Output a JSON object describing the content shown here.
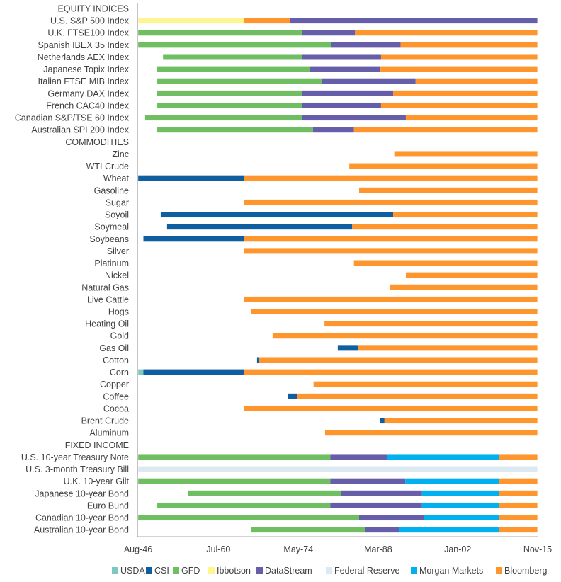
{
  "chart_data": {
    "type": "bar",
    "orientation": "horizontal-timeline",
    "title": "",
    "xlabel": "",
    "ylabel": "",
    "xlim": [
      1946.58,
      2015.85
    ],
    "x_ticks": [
      {
        "label": "Aug-46",
        "value": 1946.58
      },
      {
        "label": "Jul-60",
        "value": 1960.5
      },
      {
        "label": "May-74",
        "value": 1974.37
      },
      {
        "label": "Mar-88",
        "value": 1988.2
      },
      {
        "label": "Jan-02",
        "value": 2002.0
      },
      {
        "label": "Nov-15",
        "value": 2015.85
      }
    ],
    "legend_position": "bottom",
    "sources": [
      {
        "name": "USDA",
        "color": "#7fc8c0"
      },
      {
        "name": "CSI",
        "color": "#0f5fa0"
      },
      {
        "name": "GFD",
        "color": "#6fbf62"
      },
      {
        "name": "Ibbotson",
        "color": "#fff68f"
      },
      {
        "name": "DataStream",
        "color": "#665ea8"
      },
      {
        "name": "Federal Reserve",
        "color": "#dce9f3"
      },
      {
        "name": "Morgan Markets",
        "color": "#00b0ef"
      },
      {
        "name": "Bloomberg",
        "color": "#fe952d"
      }
    ],
    "rows": [
      {
        "label": "EQUITY INDICES",
        "header": true,
        "segments": []
      },
      {
        "label": "U.S. S&P 500 Index",
        "segments": [
          [
            "Ibbotson",
            1946.6,
            1964.9
          ],
          [
            "Bloomberg",
            1964.9,
            1972.9
          ],
          [
            "DataStream",
            1972.9,
            2015.8
          ]
        ]
      },
      {
        "label": "U.K. FTSE100 Index",
        "segments": [
          [
            "GFD",
            1946.6,
            1975.0
          ],
          [
            "DataStream",
            1975.0,
            1984.2
          ],
          [
            "Bloomberg",
            1984.2,
            2015.8
          ]
        ]
      },
      {
        "label": "Spanish IBEX 35 Index",
        "segments": [
          [
            "GFD",
            1946.6,
            1980.0
          ],
          [
            "DataStream",
            1980.0,
            1992.1
          ],
          [
            "Bloomberg",
            1992.1,
            2015.8
          ]
        ]
      },
      {
        "label": "Netherlands AEX Index",
        "segments": [
          [
            "GFD",
            1950.9,
            1975.0
          ],
          [
            "DataStream",
            1975.0,
            1988.7
          ],
          [
            "Bloomberg",
            1988.7,
            2015.8
          ]
        ]
      },
      {
        "label": "Japanese Topix Index",
        "segments": [
          [
            "GFD",
            1949.9,
            1976.4
          ],
          [
            "DataStream",
            1976.4,
            1988.6
          ],
          [
            "Bloomberg",
            1988.6,
            2015.8
          ]
        ]
      },
      {
        "label": "Italian FTSE MIB Index",
        "segments": [
          [
            "GFD",
            1949.9,
            1978.4
          ],
          [
            "DataStream",
            1978.4,
            1994.7
          ],
          [
            "Bloomberg",
            1994.7,
            2015.8
          ]
        ]
      },
      {
        "label": "Germany DAX Index",
        "segments": [
          [
            "GFD",
            1949.9,
            1975.0
          ],
          [
            "DataStream",
            1975.0,
            1990.8
          ],
          [
            "Bloomberg",
            1990.8,
            2015.8
          ]
        ]
      },
      {
        "label": "French CAC40 Index",
        "segments": [
          [
            "GFD",
            1949.9,
            1975.0
          ],
          [
            "DataStream",
            1975.0,
            1988.7
          ],
          [
            "Bloomberg",
            1988.7,
            2015.8
          ]
        ]
      },
      {
        "label": "Canadian S&P/TSE 60 Index",
        "segments": [
          [
            "GFD",
            1947.8,
            1975.0
          ],
          [
            "DataStream",
            1975.0,
            1993.0
          ],
          [
            "Bloomberg",
            1993.0,
            2015.8
          ]
        ]
      },
      {
        "label": "Australian SPI 200 Index",
        "segments": [
          [
            "GFD",
            1949.9,
            1976.9
          ],
          [
            "DataStream",
            1976.9,
            1984.0
          ],
          [
            "Bloomberg",
            1984.0,
            2015.8
          ]
        ]
      },
      {
        "label": "COMMODITIES",
        "header": true,
        "segments": []
      },
      {
        "label": "Zinc",
        "segments": [
          [
            "Bloomberg",
            1991.0,
            2015.8
          ]
        ]
      },
      {
        "label": "WTI Crude",
        "segments": [
          [
            "Bloomberg",
            1983.2,
            2015.8
          ]
        ]
      },
      {
        "label": "Wheat",
        "segments": [
          [
            "CSI",
            1946.6,
            1964.9
          ],
          [
            "Bloomberg",
            1964.9,
            2015.8
          ]
        ]
      },
      {
        "label": "Gasoline",
        "segments": [
          [
            "Bloomberg",
            1984.9,
            2015.8
          ]
        ]
      },
      {
        "label": "Sugar",
        "segments": [
          [
            "Bloomberg",
            1964.9,
            2015.8
          ]
        ]
      },
      {
        "label": "Soyoil",
        "segments": [
          [
            "CSI",
            1950.5,
            1990.8
          ],
          [
            "Bloomberg",
            1990.8,
            2015.8
          ]
        ]
      },
      {
        "label": "Soymeal",
        "segments": [
          [
            "CSI",
            1951.6,
            1983.7
          ],
          [
            "Bloomberg",
            1983.7,
            2015.8
          ]
        ]
      },
      {
        "label": "Soybeans",
        "segments": [
          [
            "CSI",
            1947.5,
            1964.9
          ],
          [
            "Bloomberg",
            1964.9,
            2015.8
          ]
        ]
      },
      {
        "label": "Silver",
        "segments": [
          [
            "Bloomberg",
            1964.9,
            2015.8
          ]
        ]
      },
      {
        "label": "Platinum",
        "segments": [
          [
            "Bloomberg",
            1984.0,
            2015.8
          ]
        ]
      },
      {
        "label": "Nickel",
        "segments": [
          [
            "Bloomberg",
            1993.0,
            2015.8
          ]
        ]
      },
      {
        "label": "Natural Gas",
        "segments": [
          [
            "Bloomberg",
            1990.3,
            2015.8
          ]
        ]
      },
      {
        "label": "Live Cattle",
        "segments": [
          [
            "Bloomberg",
            1964.9,
            2015.8
          ]
        ]
      },
      {
        "label": "Hogs",
        "segments": [
          [
            "Bloomberg",
            1966.1,
            2015.8
          ]
        ]
      },
      {
        "label": "Heating Oil",
        "segments": [
          [
            "Bloomberg",
            1978.9,
            2015.8
          ]
        ]
      },
      {
        "label": "Gold",
        "segments": [
          [
            "Bloomberg",
            1969.9,
            2015.8
          ]
        ]
      },
      {
        "label": "Gas Oil",
        "segments": [
          [
            "CSI",
            1981.2,
            1984.8
          ],
          [
            "Bloomberg",
            1984.8,
            2015.8
          ]
        ]
      },
      {
        "label": "Cotton",
        "segments": [
          [
            "CSI",
            1967.2,
            1967.6
          ],
          [
            "Bloomberg",
            1967.6,
            2015.8
          ]
        ]
      },
      {
        "label": "Corn",
        "segments": [
          [
            "USDA",
            1946.6,
            1947.5
          ],
          [
            "CSI",
            1947.5,
            1964.9
          ],
          [
            "Bloomberg",
            1964.9,
            2015.8
          ]
        ]
      },
      {
        "label": "Copper",
        "segments": [
          [
            "Bloomberg",
            1977.0,
            2015.8
          ]
        ]
      },
      {
        "label": "Coffee",
        "segments": [
          [
            "CSI",
            1972.6,
            1974.2
          ],
          [
            "Bloomberg",
            1974.2,
            2015.8
          ]
        ]
      },
      {
        "label": "Cocoa",
        "segments": [
          [
            "Bloomberg",
            1964.9,
            2015.8
          ]
        ]
      },
      {
        "label": "Brent Crude",
        "segments": [
          [
            "CSI",
            1988.5,
            1989.3
          ],
          [
            "Bloomberg",
            1989.3,
            2015.8
          ]
        ]
      },
      {
        "label": "Aluminum",
        "segments": [
          [
            "Bloomberg",
            1979.0,
            2015.8
          ]
        ]
      },
      {
        "label": "FIXED INCOME",
        "header": true,
        "segments": []
      },
      {
        "label": "U.S. 10-year Treasury Note",
        "segments": [
          [
            "GFD",
            1946.6,
            1979.9
          ],
          [
            "DataStream",
            1979.9,
            1989.8
          ],
          [
            "Morgan Markets",
            1989.8,
            2009.2
          ],
          [
            "Bloomberg",
            2009.2,
            2015.8
          ]
        ]
      },
      {
        "label": "U.S. 3-month Treasury Bill",
        "segments": [
          [
            "Federal Reserve",
            1946.6,
            2015.8
          ]
        ]
      },
      {
        "label": "U.K. 10-year Gilt",
        "segments": [
          [
            "GFD",
            1946.6,
            1979.9
          ],
          [
            "DataStream",
            1979.9,
            1992.9
          ],
          [
            "Morgan Markets",
            1992.9,
            2009.2
          ],
          [
            "Bloomberg",
            2009.2,
            2015.8
          ]
        ]
      },
      {
        "label": "Japanese 10-year Bond",
        "segments": [
          [
            "GFD",
            1955.3,
            1981.8
          ],
          [
            "DataStream",
            1981.8,
            1995.8
          ],
          [
            "Morgan Markets",
            1995.8,
            2009.2
          ],
          [
            "Bloomberg",
            2009.2,
            2015.8
          ]
        ]
      },
      {
        "label": "Euro Bund",
        "segments": [
          [
            "GFD",
            1949.9,
            1979.9
          ],
          [
            "DataStream",
            1979.9,
            1995.8
          ],
          [
            "Morgan Markets",
            1995.8,
            2009.2
          ],
          [
            "Bloomberg",
            2009.2,
            2015.8
          ]
        ]
      },
      {
        "label": "Canadian 10-year Bond",
        "segments": [
          [
            "GFD",
            1946.6,
            1984.9
          ],
          [
            "DataStream",
            1984.9,
            1996.2
          ],
          [
            "Morgan Markets",
            1996.2,
            2009.2
          ],
          [
            "Bloomberg",
            2009.2,
            2015.8
          ]
        ]
      },
      {
        "label": "Australian 10-year Bond",
        "segments": [
          [
            "GFD",
            1966.2,
            1985.9
          ],
          [
            "DataStream",
            1985.9,
            1991.9
          ],
          [
            "Morgan Markets",
            1991.9,
            2009.2
          ],
          [
            "Bloomberg",
            2009.2,
            2015.8
          ]
        ]
      }
    ]
  }
}
